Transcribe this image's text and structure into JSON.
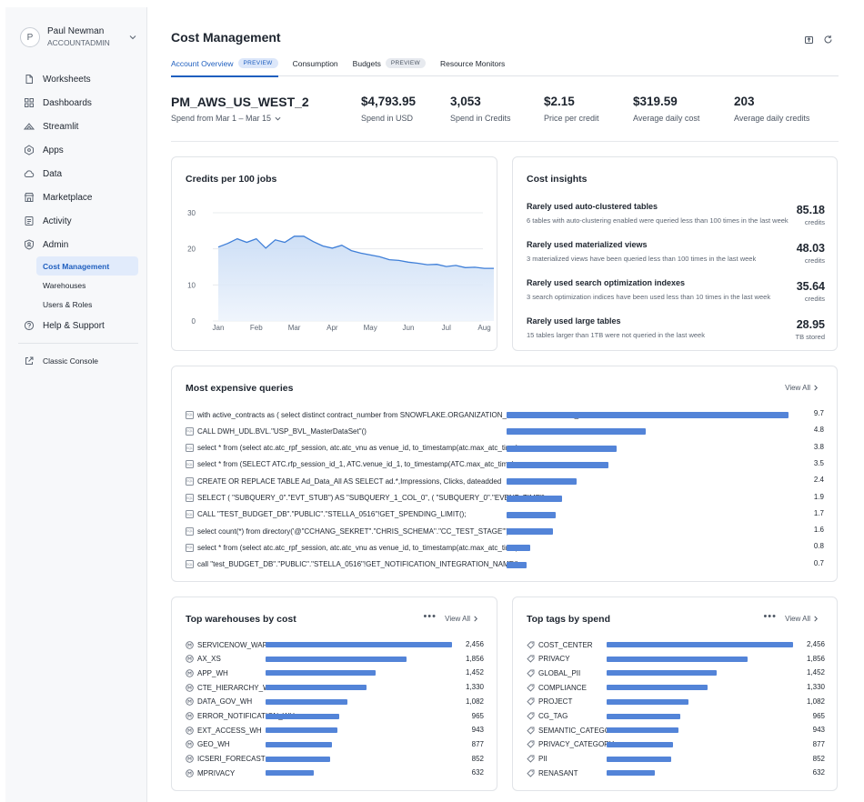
{
  "user": {
    "avatar_initial": "P",
    "name": "Paul Newman",
    "role": "ACCOUNTADMIN"
  },
  "sidebar": {
    "items": [
      {
        "label": "Worksheets",
        "icon": "file-icon"
      },
      {
        "label": "Dashboards",
        "icon": "grid-icon"
      },
      {
        "label": "Streamlit",
        "icon": "streamlit-icon"
      },
      {
        "label": "Apps",
        "icon": "apps-icon"
      },
      {
        "label": "Data",
        "icon": "cloud-icon"
      },
      {
        "label": "Marketplace",
        "icon": "store-icon"
      },
      {
        "label": "Activity",
        "icon": "activity-icon"
      },
      {
        "label": "Admin",
        "icon": "shield-icon"
      }
    ],
    "admin_sub": [
      {
        "label": "Cost Management",
        "active": true
      },
      {
        "label": "Warehouses",
        "active": false
      },
      {
        "label": "Users & Roles",
        "active": false
      }
    ],
    "help": "Help & Support",
    "classic": "Classic Console"
  },
  "page": {
    "title": "Cost Management"
  },
  "tabs": [
    {
      "label": "Account Overview",
      "badge": "PREVIEW",
      "active": true
    },
    {
      "label": "Consumption",
      "badge": "",
      "active": false
    },
    {
      "label": "Budgets",
      "badge": "PREVIEW",
      "active": false
    },
    {
      "label": "Resource Monitors",
      "badge": "",
      "active": false
    }
  ],
  "summary": {
    "account": "PM_AWS_US_WEST_2",
    "range": "Spend from Mar 1 – Mar 15",
    "metrics": [
      {
        "value": "$4,793.95",
        "label": "Spend in USD"
      },
      {
        "value": "3,053",
        "label": "Spend in Credits"
      },
      {
        "value": "$2.15",
        "label": "Price per credit"
      },
      {
        "value": "$319.59",
        "label": "Average daily cost"
      },
      {
        "value": "203",
        "label": "Average daily credits"
      }
    ]
  },
  "credits_chart": {
    "title": "Credits per 100 jobs",
    "colors": {
      "line": "#3f7fd8",
      "fill_top": "#c9dcf5",
      "fill_bottom": "#eef4fc",
      "grid": "#e3e6ea"
    }
  },
  "chart_data": {
    "type": "area",
    "title": "Credits per 100 jobs",
    "categories": [
      "Jan",
      "Feb",
      "Mar",
      "Apr",
      "May",
      "Jun",
      "Jul",
      "Aug"
    ],
    "yticks": [
      0,
      10,
      20,
      30
    ],
    "ylim": [
      0,
      30
    ],
    "x": [
      0,
      0.25,
      0.5,
      0.75,
      1,
      1.25,
      1.5,
      1.75,
      2,
      2.25,
      2.5,
      2.75,
      3,
      3.25,
      3.5,
      3.75,
      4,
      4.25,
      4.5,
      4.75,
      5,
      5.25,
      5.5,
      5.75,
      6,
      6.25,
      6.5,
      6.75,
      7,
      7.25
    ],
    "values": [
      20.5,
      21.5,
      22.8,
      21.8,
      22.8,
      20.2,
      22.5,
      21.8,
      23.5,
      23.5,
      22.0,
      20.8,
      20.2,
      21.0,
      19.5,
      18.8,
      18.3,
      17.8,
      17.0,
      16.8,
      16.3,
      16.0,
      15.6,
      15.7,
      15.1,
      15.4,
      14.8,
      14.9,
      14.6,
      14.6
    ],
    "grid": true,
    "legend": "none"
  },
  "insights": {
    "title": "Cost insights",
    "items": [
      {
        "title": "Rarely used auto-clustered tables",
        "desc": "6 tables with auto-clustering enabled were queried less than 100 times in the last week",
        "value": "85.18",
        "unit": "credits"
      },
      {
        "title": "Rarely used materialized views",
        "desc": "3 materialized views have been queried less than 100 times in the last week",
        "value": "48.03",
        "unit": "credits"
      },
      {
        "title": "Rarely used search optimization indexes",
        "desc": "3 search optimization indices have been used less than 10 times in the last week",
        "value": "35.64",
        "unit": "credits"
      },
      {
        "title": "Rarely used large tables",
        "desc": "15 tables larger than 1TB were not queried in the last week",
        "value": "28.95",
        "unit": "TB stored"
      }
    ]
  },
  "queries": {
    "title": "Most expensive queries",
    "view_all": "View All",
    "sql_icon_text": "SQL",
    "max": 9.7,
    "rows": [
      {
        "text": "with active_contracts as ( select distinct contract_number from SNOWFLAKE.ORGANIZATION_USAGE.CONTRACT_ITEMS",
        "value": 9.7,
        "label": "9.7"
      },
      {
        "text": "CALL DWH_UDL.BVL.\"USP_BVL_MasterDataSet\"()",
        "value": 4.8,
        "label": "4.8"
      },
      {
        "text": "select * from (select atc.atc_rpf_session, atc.atc_vnu as venue_id,  to_timestamp(atc.max_atc_time)",
        "value": 3.8,
        "label": "3.8"
      },
      {
        "text": "select * from (SELECT ATC.rfp_session_id_1, ATC.venue_id_1, to_timestamp(ATC.max_atc_time)",
        "value": 3.5,
        "label": "3.5"
      },
      {
        "text": "CREATE OR REPLACE TABLE Ad_Data_All AS SELECT ad.*,Impressions, Clicks, dateadded",
        "value": 2.4,
        "label": "2.4"
      },
      {
        "text": "SELECT ( \"SUBQUERY_0\".\"EVT_STUB\") AS \"SUBQUERY_1_COL_0\", ( \"SUBQUERY_0\".\"EVENT_TIME\")",
        "value": 1.9,
        "label": "1.9"
      },
      {
        "text": "CALL \"TEST_BUDGET_DB\".\"PUBLIC\".\"STELLA_0516\"!GET_SPENDING_LIMIT();",
        "value": 1.7,
        "label": "1.7"
      },
      {
        "text": "select count(*) from directory('@\"CCHANG_SEKRET\".\"CHRIS_SCHEMA\".\"CC_TEST_STAGE\"')",
        "value": 1.6,
        "label": "1.6"
      },
      {
        "text": "select * from (select atc.atc_rpf_session, atc.atc_vnu as venue_id,  to_timestamp(atc.max_atc_time)",
        "value": 0.8,
        "label": "0.8"
      },
      {
        "text": "call \"test_BUDGET_DB\".\"PUBLIC\".\"STELLA_0516\"!GET_NOTIFICATION_INTEGRATION_NAME()",
        "value": 0.7,
        "label": "0.7"
      }
    ]
  },
  "warehouses": {
    "title": "Top warehouses by cost",
    "more": "•••",
    "view_all": "View All",
    "max": 2456,
    "rows": [
      {
        "name": "SERVICENOW_WAREHOUSE",
        "value": 2456,
        "label": "2,456"
      },
      {
        "name": "AX_XS",
        "value": 1856,
        "label": "1,856"
      },
      {
        "name": "APP_WH",
        "value": 1452,
        "label": "1,452"
      },
      {
        "name": "CTE_HIERARCHY_WH",
        "value": 1330,
        "label": "1,330"
      },
      {
        "name": "DATA_GOV_WH",
        "value": 1082,
        "label": "1,082"
      },
      {
        "name": "ERROR_NOTIFICATION_WH",
        "value": 965,
        "label": "965"
      },
      {
        "name": "EXT_ACCESS_WH",
        "value": 943,
        "label": "943"
      },
      {
        "name": "GEO_WH",
        "value": 877,
        "label": "877"
      },
      {
        "name": "ICSERI_FORECAST",
        "value": 852,
        "label": "852"
      },
      {
        "name": "MPRIVACY",
        "value": 632,
        "label": "632"
      }
    ]
  },
  "tags": {
    "title": "Top tags by spend",
    "more": "•••",
    "view_all": "View All",
    "max": 2456,
    "rows": [
      {
        "name": "COST_CENTER",
        "value": 2456,
        "label": "2,456"
      },
      {
        "name": "PRIVACY",
        "value": 1856,
        "label": "1,856"
      },
      {
        "name": "GLOBAL_PII",
        "value": 1452,
        "label": "1,452"
      },
      {
        "name": "COMPLIANCE",
        "value": 1330,
        "label": "1,330"
      },
      {
        "name": "PROJECT",
        "value": 1082,
        "label": "1,082"
      },
      {
        "name": "CG_TAG",
        "value": 965,
        "label": "965"
      },
      {
        "name": "SEMANTIC_CATEGORY",
        "value": 943,
        "label": "943"
      },
      {
        "name": "PRIVACY_CATEGORY",
        "value": 877,
        "label": "877"
      },
      {
        "name": "PII",
        "value": 852,
        "label": "852"
      },
      {
        "name": "RENASANT",
        "value": 632,
        "label": "632"
      }
    ]
  }
}
